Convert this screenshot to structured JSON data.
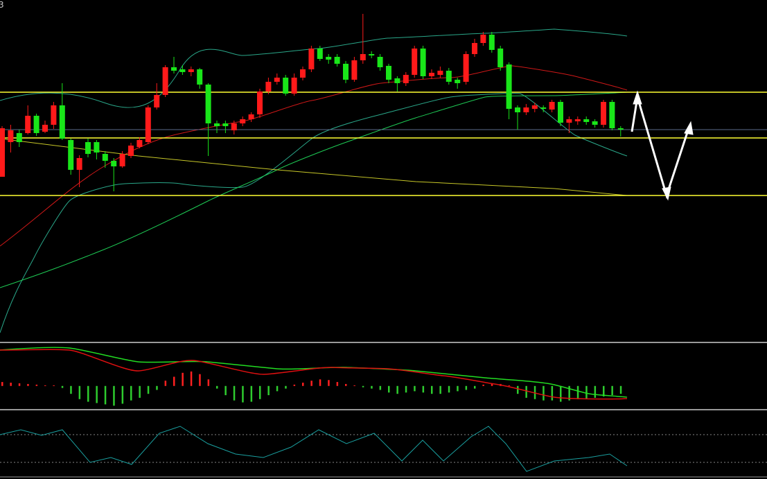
{
  "header_text": "3",
  "chart_data": [
    {
      "type": "candlestick",
      "ylim": [
        0,
        492
      ],
      "up_color": "#ff1a1a",
      "down_color": "#19e619",
      "levels": [
        359,
        293,
        210
      ],
      "level_color": "#ffff33",
      "ohlc": [
        [
          237,
          310,
          237,
          307
        ],
        [
          287,
          312,
          272,
          304
        ],
        [
          300,
          305,
          280,
          287
        ],
        [
          300,
          340,
          298,
          325
        ],
        [
          325,
          328,
          296,
          300
        ],
        [
          302,
          318,
          300,
          312
        ],
        [
          312,
          345,
          306,
          340
        ],
        [
          340,
          372,
          290,
          292
        ],
        [
          290,
          292,
          240,
          247
        ],
        [
          247,
          268,
          222,
          264
        ],
        [
          287,
          292,
          265,
          270
        ],
        [
          287,
          290,
          262,
          272
        ],
        [
          270,
          274,
          250,
          260
        ],
        [
          260,
          264,
          216,
          252
        ],
        [
          252,
          274,
          250,
          270
        ],
        [
          267,
          286,
          264,
          282
        ],
        [
          280,
          294,
          278,
          290
        ],
        [
          287,
          340,
          284,
          337
        ],
        [
          337,
          372,
          334,
          355
        ],
        [
          355,
          398,
          352,
          395
        ],
        [
          395,
          410,
          386,
          390
        ],
        [
          392,
          398,
          384,
          388
        ],
        [
          388,
          396,
          382,
          392
        ],
        [
          392,
          394,
          364,
          370
        ],
        [
          370,
          372,
          267,
          314
        ],
        [
          314,
          318,
          300,
          310
        ],
        [
          314,
          318,
          300,
          310
        ],
        [
          304,
          318,
          298,
          314
        ],
        [
          314,
          324,
          310,
          320
        ],
        [
          320,
          330,
          316,
          327
        ],
        [
          327,
          364,
          322,
          360
        ],
        [
          360,
          380,
          356,
          374
        ],
        [
          374,
          386,
          370,
          380
        ],
        [
          380,
          384,
          354,
          357
        ],
        [
          357,
          386,
          354,
          380
        ],
        [
          380,
          396,
          376,
          392
        ],
        [
          392,
          426,
          388,
          422
        ],
        [
          422,
          426,
          404,
          407
        ],
        [
          410,
          414,
          400,
          406
        ],
        [
          410,
          414,
          396,
          400
        ],
        [
          400,
          404,
          372,
          377
        ],
        [
          377,
          410,
          374,
          405
        ],
        [
          405,
          472,
          400,
          414
        ],
        [
          414,
          418,
          408,
          412
        ],
        [
          410,
          414,
          390,
          395
        ],
        [
          397,
          400,
          372,
          377
        ],
        [
          379,
          382,
          360,
          372
        ],
        [
          372,
          388,
          368,
          384
        ],
        [
          384,
          426,
          380,
          422
        ],
        [
          422,
          426,
          378,
          382
        ],
        [
          382,
          392,
          378,
          387
        ],
        [
          384,
          396,
          380,
          390
        ],
        [
          390,
          394,
          370,
          374
        ],
        [
          377,
          380,
          364,
          372
        ],
        [
          374,
          418,
          370,
          414
        ],
        [
          414,
          436,
          410,
          430
        ],
        [
          430,
          446,
          426,
          442
        ],
        [
          442,
          446,
          416,
          420
        ],
        [
          422,
          426,
          390,
          395
        ],
        [
          399,
          402,
          320,
          335
        ],
        [
          337,
          340,
          305,
          330
        ],
        [
          330,
          342,
          326,
          337
        ],
        [
          335,
          344,
          330,
          340
        ],
        [
          337,
          340,
          330,
          335
        ],
        [
          334,
          348,
          330,
          345
        ],
        [
          345,
          348,
          310,
          315
        ],
        [
          315,
          324,
          300,
          320
        ],
        [
          317,
          324,
          312,
          320
        ],
        [
          320,
          324,
          312,
          316
        ],
        [
          317,
          320,
          308,
          312
        ],
        [
          312,
          348,
          308,
          345
        ],
        [
          345,
          348,
          304,
          307
        ],
        [
          307,
          310,
          295,
          305
        ]
      ]
    },
    {
      "type": "bar",
      "ylim": [
        -35,
        63
      ],
      "positive_color": "#ff2020",
      "negative_color": "#2ecc2e",
      "values": [
        6,
        5,
        4,
        3,
        2,
        1,
        1,
        -3,
        -12,
        -20,
        -24,
        -26,
        -28,
        -30,
        -27,
        -22,
        -18,
        -12,
        -6,
        8,
        14,
        20,
        22,
        18,
        10,
        -4,
        -14,
        -22,
        -25,
        -24,
        -20,
        -14,
        -8,
        -4,
        2,
        5,
        8,
        10,
        9,
        6,
        3,
        1,
        -2,
        -4,
        -6,
        -10,
        -12,
        -10,
        -8,
        -10,
        -12,
        -12,
        -10,
        -8,
        -6,
        -4,
        2,
        4,
        3,
        1,
        -12,
        -18,
        -20,
        -22,
        -22,
        -24,
        -22,
        -20,
        -20,
        -18,
        -16,
        -14,
        -12
      ]
    }
  ]
}
